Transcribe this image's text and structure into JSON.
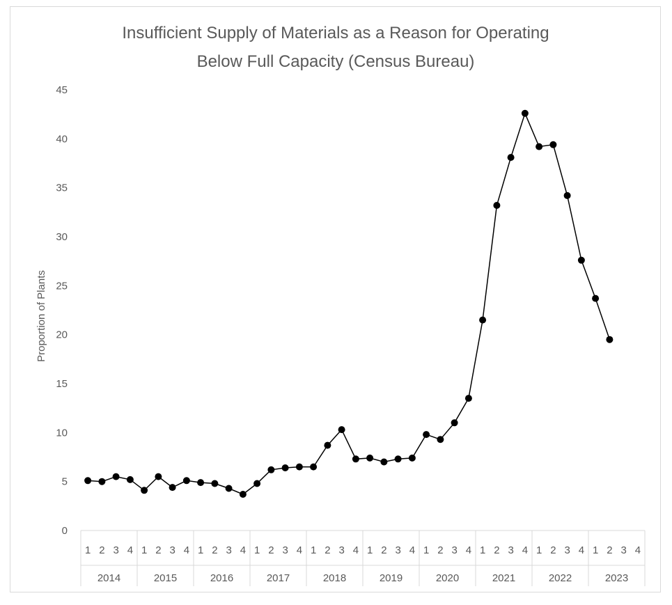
{
  "chart_data": {
    "type": "line",
    "title": "Insufficient Supply of Materials as a Reason for Operating Below Full Capacity (Census Bureau)",
    "title_lines": [
      "Insufficient Supply of Materials as a Reason for Operating",
      "Below Full Capacity (Census Bureau)"
    ],
    "xlabel": "",
    "ylabel": "Proportion of Plants",
    "ylim": [
      0,
      45
    ],
    "yticks": [
      0,
      5,
      10,
      15,
      20,
      25,
      30,
      35,
      40,
      45
    ],
    "years": [
      "2014",
      "2015",
      "2016",
      "2017",
      "2018",
      "2019",
      "2020",
      "2021",
      "2022",
      "2023"
    ],
    "quarters": [
      "1",
      "2",
      "3",
      "4"
    ],
    "series": [
      {
        "name": "Proportion of Plants",
        "color": "#000000",
        "values": [
          5.1,
          5.0,
          5.5,
          5.2,
          4.1,
          5.5,
          4.4,
          5.1,
          4.9,
          4.8,
          4.3,
          3.7,
          4.8,
          6.2,
          6.4,
          6.5,
          6.5,
          8.7,
          10.3,
          7.3,
          7.4,
          7.0,
          7.3,
          7.4,
          9.8,
          9.3,
          11.0,
          13.5,
          21.5,
          33.2,
          38.1,
          42.6,
          39.2,
          39.4,
          34.2,
          27.6,
          23.7,
          19.5
        ]
      }
    ]
  }
}
